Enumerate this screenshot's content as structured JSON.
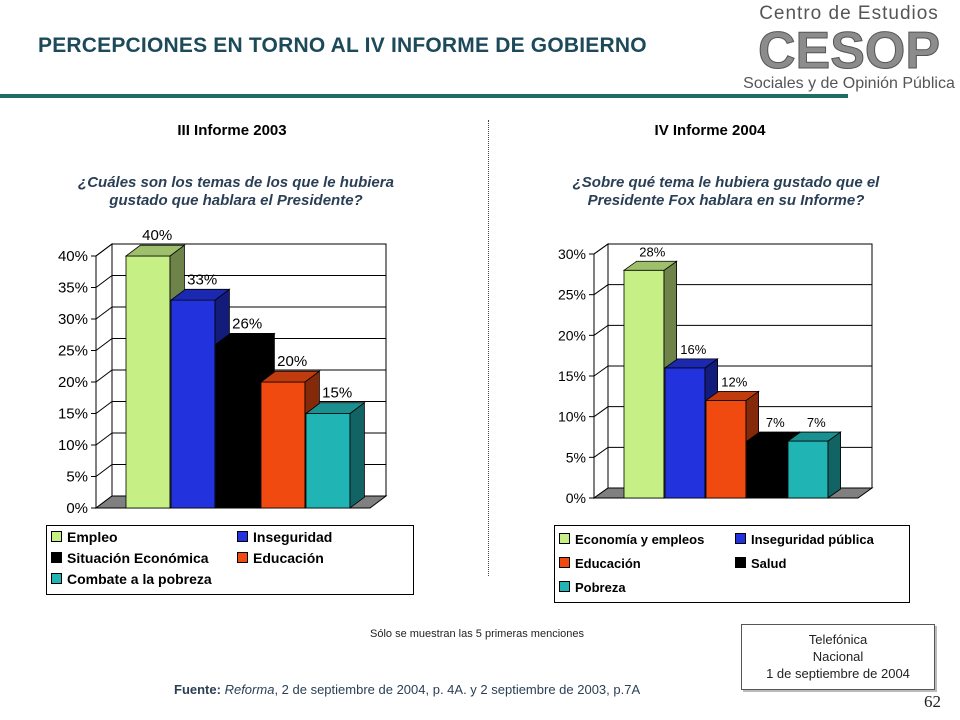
{
  "header": {
    "title": "PERCEPCIONES EN TORNO AL IV INFORME DE GOBIERNO",
    "logo": {
      "line1": "Centro de Estudios",
      "mark": "CESOP",
      "line2": "Sociales y de Opinión Pública"
    }
  },
  "left": {
    "heading": "III Informe 2003",
    "question_line1": "¿Cuáles son los temas de los que le hubiera",
    "question_line2": "gustado que hablara el Presidente?"
  },
  "right": {
    "heading": "IV Informe 2004",
    "question_line1": "¿Sobre qué tema le hubiera gustado que el",
    "question_line2": "Presidente Fox hablara en su Informe?"
  },
  "chart_data": [
    {
      "type": "bar",
      "categories": [
        "Empleo",
        "Inseguridad",
        "Situación Económica",
        "Educación",
        "Combate a la pobreza"
      ],
      "values": [
        40,
        33,
        26,
        20,
        15
      ],
      "data_labels": [
        "40%",
        "33%",
        "26%",
        "20%",
        "15%"
      ],
      "colors": [
        "#c6ef86",
        "#2233dd",
        "#000000",
        "#f04a10",
        "#21b4b4"
      ],
      "ylim": [
        0,
        40
      ],
      "ytick_labels": [
        "0%",
        "5%",
        "10%",
        "15%",
        "20%",
        "25%",
        "30%",
        "35%",
        "40%"
      ],
      "grid": true,
      "legend_position": "bottom"
    },
    {
      "type": "bar",
      "categories": [
        "Economía y empleos",
        "Inseguridad pública",
        "Educación",
        "Salud",
        "Pobreza"
      ],
      "values": [
        28,
        16,
        12,
        7,
        7
      ],
      "data_labels": [
        "28%",
        "16%",
        "12%",
        "7%",
        "7%"
      ],
      "colors": [
        "#c6ef86",
        "#2233dd",
        "#f04a10",
        "#000000",
        "#21b4b4"
      ],
      "ylim": [
        0,
        30
      ],
      "ytick_labels": [
        "0%",
        "5%",
        "10%",
        "15%",
        "20%",
        "25%",
        "30%"
      ],
      "grid": true,
      "legend_position": "bottom"
    }
  ],
  "footer": {
    "note": "Sólo se muestran las 5 primeras menciones",
    "source_label": "Fuente:",
    "source_publication": "Reforma",
    "source_text": ", 2 de septiembre de 2004, p. 4A. y 2 septiembre de 2003, p.7A",
    "phone_line1": "Telefónica",
    "phone_line2": "Nacional",
    "phone_line3": "1 de septiembre de 2004",
    "page_number": "62"
  }
}
